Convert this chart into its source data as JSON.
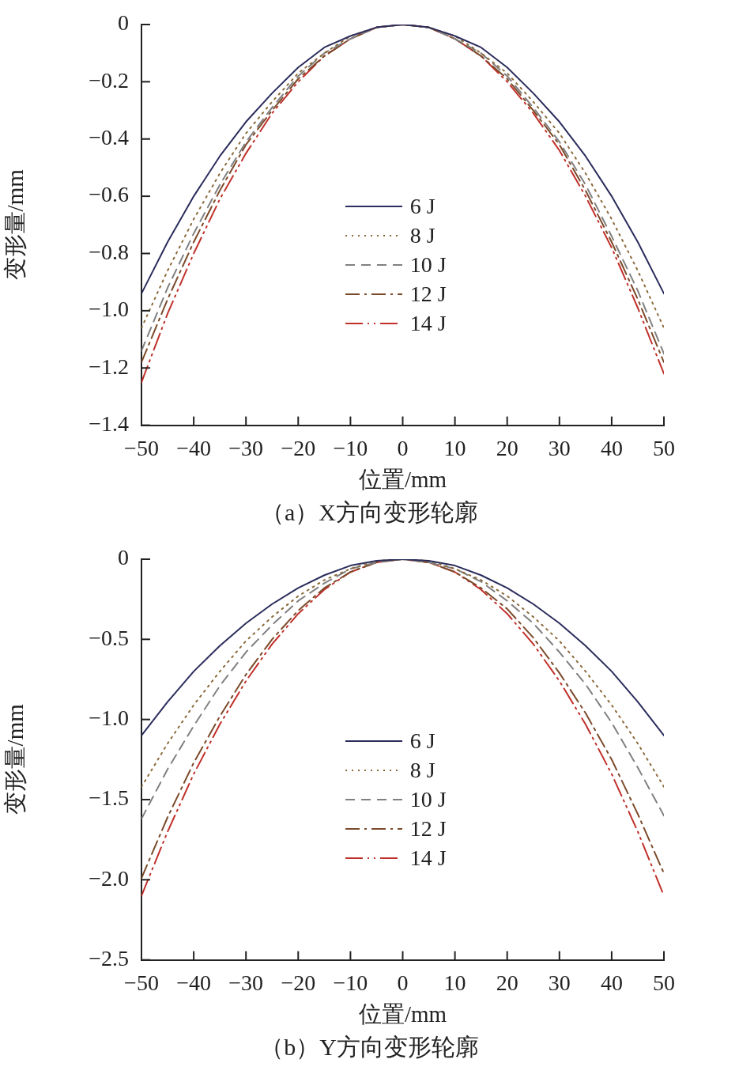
{
  "chart_data": [
    {
      "type": "line",
      "title": "（a）X方向变形轮廓",
      "xlabel": "位置/mm",
      "ylabel": "变形量/mm",
      "x": [
        -50,
        -45,
        -40,
        -35,
        -30,
        -25,
        -20,
        -15,
        -10,
        -5,
        0,
        5,
        10,
        15,
        20,
        25,
        30,
        35,
        40,
        45,
        50
      ],
      "series": [
        {
          "name": "6 J",
          "color": "#2b2d5c",
          "line_style": "solid",
          "values": [
            -0.94,
            -0.76,
            -0.6,
            -0.46,
            -0.34,
            -0.24,
            -0.15,
            -0.08,
            -0.04,
            -0.01,
            0,
            -0.01,
            -0.04,
            -0.08,
            -0.15,
            -0.24,
            -0.34,
            -0.46,
            -0.6,
            -0.76,
            -0.94
          ]
        },
        {
          "name": "8 J",
          "color": "#8b6a3a",
          "line_style": "dotted",
          "values": [
            -1.06,
            -0.86,
            -0.68,
            -0.52,
            -0.38,
            -0.27,
            -0.17,
            -0.1,
            -0.04,
            -0.01,
            0,
            -0.01,
            -0.04,
            -0.1,
            -0.17,
            -0.27,
            -0.38,
            -0.52,
            -0.68,
            -0.86,
            -1.06
          ]
        },
        {
          "name": "10 J",
          "color": "#808080",
          "line_style": "dashed",
          "values": [
            -1.14,
            -0.92,
            -0.73,
            -0.56,
            -0.41,
            -0.29,
            -0.18,
            -0.1,
            -0.05,
            -0.01,
            0,
            -0.01,
            -0.05,
            -0.1,
            -0.18,
            -0.29,
            -0.41,
            -0.56,
            -0.74,
            -0.93,
            -1.15
          ]
        },
        {
          "name": "12 J",
          "color": "#7b4a2a",
          "line_style": "dashdot",
          "values": [
            -1.18,
            -0.96,
            -0.76,
            -0.58,
            -0.42,
            -0.3,
            -0.19,
            -0.11,
            -0.05,
            -0.01,
            0,
            -0.01,
            -0.05,
            -0.11,
            -0.19,
            -0.3,
            -0.42,
            -0.58,
            -0.76,
            -0.96,
            -1.18
          ]
        },
        {
          "name": "14 J",
          "color": "#c0302a",
          "line_style": "dashdotdot",
          "values": [
            -1.25,
            -1.01,
            -0.8,
            -0.61,
            -0.45,
            -0.31,
            -0.2,
            -0.11,
            -0.05,
            -0.01,
            0,
            -0.01,
            -0.05,
            -0.11,
            -0.2,
            -0.31,
            -0.44,
            -0.6,
            -0.78,
            -0.99,
            -1.22
          ]
        }
      ],
      "xlim": [
        -50,
        50
      ],
      "xticks": [
        {
          "value": -50,
          "label": "−50"
        },
        {
          "value": -40,
          "label": "−40"
        },
        {
          "value": -30,
          "label": "−30"
        },
        {
          "value": -20,
          "label": "−20"
        },
        {
          "value": -10,
          "label": "−10"
        },
        0,
        10,
        20,
        30,
        40,
        50
      ],
      "ylim": [
        -1.4,
        0
      ],
      "yticks": [
        0,
        {
          "value": -0.2,
          "label": "−0.2"
        },
        {
          "value": -0.4,
          "label": "−0.4"
        },
        {
          "value": -0.6,
          "label": "−0.6"
        },
        {
          "value": -0.8,
          "label": "−0.8"
        },
        {
          "value": -1.0,
          "label": "−1.0"
        },
        {
          "value": -1.2,
          "label": "−1.2"
        },
        {
          "value": -1.4,
          "label": "−1.4"
        }
      ],
      "legend": "center",
      "marker": "none"
    },
    {
      "type": "line",
      "title": "（b）Y方向变形轮廓",
      "xlabel": "位置/mm",
      "ylabel": "变形量/mm",
      "x": [
        -50,
        -45,
        -40,
        -35,
        -30,
        -25,
        -20,
        -15,
        -10,
        -5,
        0,
        5,
        10,
        15,
        20,
        25,
        30,
        35,
        40,
        45,
        50
      ],
      "series": [
        {
          "name": "6 J",
          "color": "#2b2d5c",
          "line_style": "solid",
          "values": [
            -1.1,
            -0.89,
            -0.7,
            -0.54,
            -0.4,
            -0.28,
            -0.18,
            -0.1,
            -0.04,
            -0.01,
            0,
            -0.01,
            -0.04,
            -0.1,
            -0.18,
            -0.28,
            -0.4,
            -0.54,
            -0.7,
            -0.89,
            -1.1
          ]
        },
        {
          "name": "8 J",
          "color": "#8b6a3a",
          "line_style": "dotted",
          "values": [
            -1.42,
            -1.15,
            -0.91,
            -0.7,
            -0.51,
            -0.36,
            -0.23,
            -0.13,
            -0.06,
            -0.01,
            0,
            -0.01,
            -0.06,
            -0.13,
            -0.23,
            -0.36,
            -0.51,
            -0.7,
            -0.91,
            -1.15,
            -1.42
          ]
        },
        {
          "name": "10 J",
          "color": "#808080",
          "line_style": "dashed",
          "values": [
            -1.62,
            -1.31,
            -1.04,
            -0.79,
            -0.58,
            -0.41,
            -0.26,
            -0.15,
            -0.06,
            -0.02,
            0,
            -0.02,
            -0.06,
            -0.14,
            -0.26,
            -0.4,
            -0.58,
            -0.78,
            -1.02,
            -1.3,
            -1.6
          ]
        },
        {
          "name": "12 J",
          "color": "#7b4a2a",
          "line_style": "dashdot",
          "values": [
            -1.99,
            -1.61,
            -1.27,
            -0.98,
            -0.72,
            -0.5,
            -0.32,
            -0.18,
            -0.08,
            -0.02,
            0,
            -0.02,
            -0.08,
            -0.18,
            -0.31,
            -0.49,
            -0.71,
            -0.96,
            -1.25,
            -1.59,
            -1.96
          ]
        },
        {
          "name": "14 J",
          "color": "#c0302a",
          "line_style": "dashdotdot",
          "values": [
            -2.1,
            -1.7,
            -1.34,
            -1.03,
            -0.76,
            -0.53,
            -0.34,
            -0.19,
            -0.08,
            -0.02,
            0,
            -0.02,
            -0.08,
            -0.19,
            -0.34,
            -0.53,
            -0.76,
            -1.03,
            -1.34,
            -1.7,
            -2.1
          ]
        }
      ],
      "xlim": [
        -50,
        50
      ],
      "xticks": [
        {
          "value": -50,
          "label": "−50"
        },
        {
          "value": -40,
          "label": "−40"
        },
        {
          "value": -30,
          "label": "−30"
        },
        {
          "value": -20,
          "label": "−20"
        },
        {
          "value": -10,
          "label": "−10"
        },
        0,
        10,
        20,
        30,
        40,
        50
      ],
      "ylim": [
        -2.5,
        0
      ],
      "yticks": [
        0,
        {
          "value": -0.5,
          "label": "−0.5"
        },
        {
          "value": -1.0,
          "label": "−1.0"
        },
        {
          "value": -1.5,
          "label": "−1.5"
        },
        {
          "value": -2.0,
          "label": "−2.0"
        },
        {
          "value": -2.5,
          "label": "−2.5"
        }
      ],
      "legend": "center",
      "marker": "none"
    }
  ]
}
